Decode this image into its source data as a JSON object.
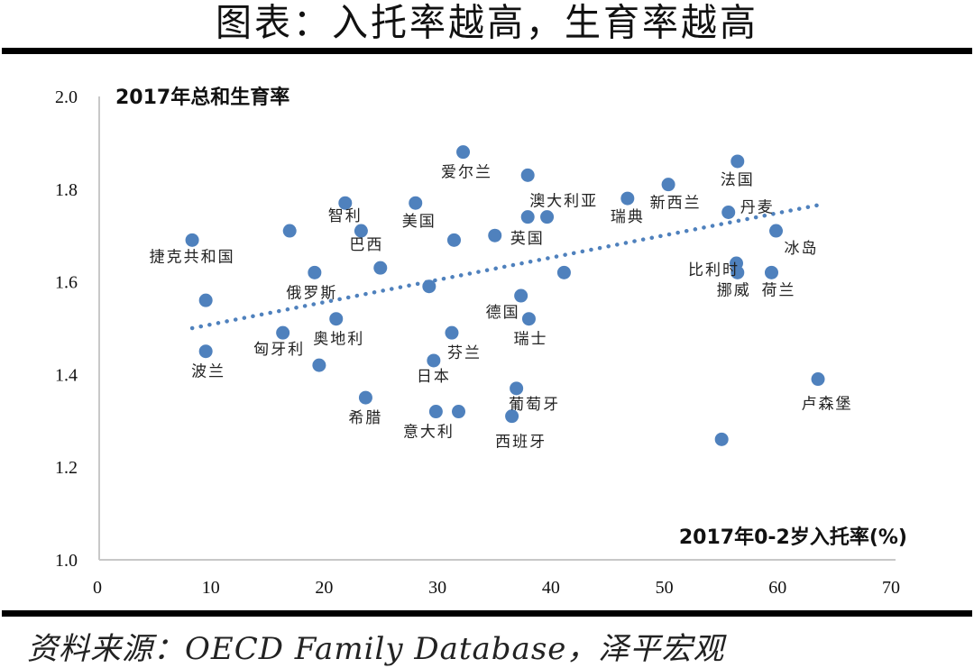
{
  "header": {
    "title": "图表：入托率越高，生育率越高"
  },
  "footer": {
    "source": "资料来源：OECD Family Database，泽平宏观"
  },
  "chart_data": {
    "type": "scatter",
    "title": "图表：入托率越高，生育率越高",
    "xlabel": "2017年0-2岁入托率(%)",
    "ylabel": "2017年总和生育率",
    "xlim": [
      0,
      70
    ],
    "ylim": [
      1.0,
      2.0
    ],
    "x_ticks": [
      "0",
      "10",
      "20",
      "30",
      "40",
      "50",
      "60",
      "70"
    ],
    "y_ticks": [
      "1.0",
      "1.2",
      "1.4",
      "1.6",
      "1.8",
      "2.0"
    ],
    "grid": false,
    "marker_color": "#4F81BD",
    "trendline": {
      "type": "linear",
      "style": "dotted",
      "x": [
        8.2,
        63.3
      ],
      "y": [
        1.5,
        1.765
      ]
    },
    "points": [
      {
        "label": "捷克共和国",
        "x": 8.2,
        "y": 1.69
      },
      {
        "label": "",
        "x": 16.8,
        "y": 1.71
      },
      {
        "label": "智利",
        "x": 21.7,
        "y": 1.77
      },
      {
        "label": "巴西",
        "x": 23.1,
        "y": 1.71
      },
      {
        "label": "俄罗斯",
        "x": 19.0,
        "y": 1.62
      },
      {
        "label": "",
        "x": 24.8,
        "y": 1.63
      },
      {
        "label": "",
        "x": 9.4,
        "y": 1.56
      },
      {
        "label": "匈牙利",
        "x": 16.2,
        "y": 1.49
      },
      {
        "label": "奥地利",
        "x": 20.9,
        "y": 1.52
      },
      {
        "label": "波兰",
        "x": 9.4,
        "y": 1.45
      },
      {
        "label": "",
        "x": 19.4,
        "y": 1.42
      },
      {
        "label": "希腊",
        "x": 23.5,
        "y": 1.35
      },
      {
        "label": "爱尔兰",
        "x": 32.1,
        "y": 1.88
      },
      {
        "label": "",
        "x": 37.8,
        "y": 1.83
      },
      {
        "label": "美国",
        "x": 27.9,
        "y": 1.77
      },
      {
        "label": "澳大利亚",
        "x": 37.8,
        "y": 1.74
      },
      {
        "label": "",
        "x": 39.5,
        "y": 1.74
      },
      {
        "label": "",
        "x": 31.3,
        "y": 1.69
      },
      {
        "label": "英国",
        "x": 34.9,
        "y": 1.7
      },
      {
        "label": "",
        "x": 41.0,
        "y": 1.62
      },
      {
        "label": "",
        "x": 29.1,
        "y": 1.59
      },
      {
        "label": "德国",
        "x": 37.2,
        "y": 1.57
      },
      {
        "label": "瑞士",
        "x": 37.9,
        "y": 1.52
      },
      {
        "label": "芬兰",
        "x": 31.1,
        "y": 1.49
      },
      {
        "label": "日本",
        "x": 29.5,
        "y": 1.43
      },
      {
        "label": "葡萄牙",
        "x": 36.8,
        "y": 1.37
      },
      {
        "label": "意大利",
        "x": 29.7,
        "y": 1.32
      },
      {
        "label": "",
        "x": 31.7,
        "y": 1.32
      },
      {
        "label": "西班牙",
        "x": 36.4,
        "y": 1.31
      },
      {
        "label": "瑞典",
        "x": 46.6,
        "y": 1.78
      },
      {
        "label": "新西兰",
        "x": 50.2,
        "y": 1.81
      },
      {
        "label": "法国",
        "x": 56.3,
        "y": 1.86
      },
      {
        "label": "丹麦",
        "x": 55.5,
        "y": 1.75
      },
      {
        "label": "冰岛",
        "x": 59.7,
        "y": 1.71
      },
      {
        "label": "比利时",
        "x": 56.2,
        "y": 1.64
      },
      {
        "label": "挪威",
        "x": 56.3,
        "y": 1.62
      },
      {
        "label": "荷兰",
        "x": 59.3,
        "y": 1.62
      },
      {
        "label": "卢森堡",
        "x": 63.4,
        "y": 1.39
      },
      {
        "label": "",
        "x": 54.9,
        "y": 1.26
      }
    ]
  }
}
